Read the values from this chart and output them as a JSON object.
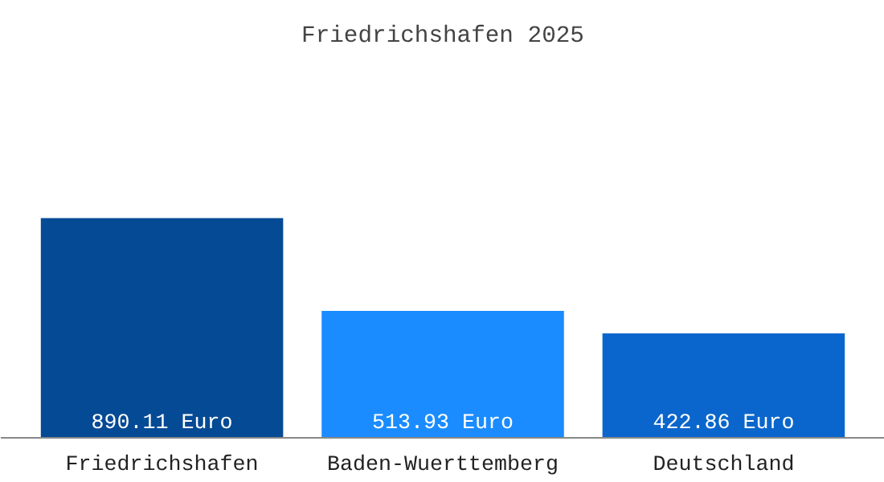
{
  "chart_data": {
    "type": "bar",
    "title": "Friedrichshafen 2025",
    "categories": [
      "Friedrichshafen",
      "Baden-Wuerttemberg",
      "Deutschland"
    ],
    "values": [
      890.11,
      513.93,
      422.86
    ],
    "colors": [
      "#054a94",
      "#1a8cff",
      "#0a66cc"
    ],
    "value_labels": [
      "890.11 Euro",
      "513.93 Euro",
      "422.86 Euro"
    ],
    "grid": false
  }
}
